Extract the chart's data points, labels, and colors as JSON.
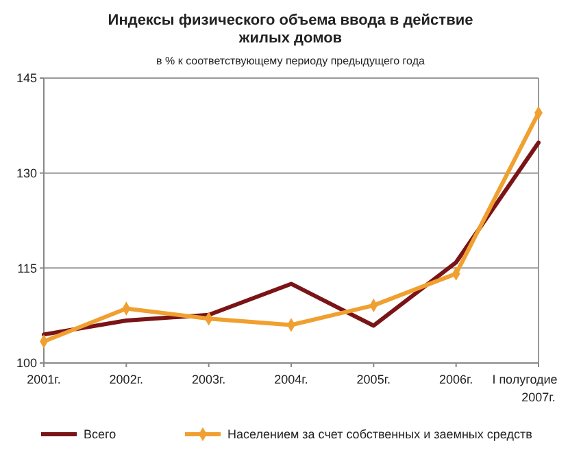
{
  "chart_data": {
    "type": "line",
    "title": "Индексы физического объема ввода в действие\nжилых домов",
    "subtitle": "в % к соответствующему периоду предыдущего года",
    "categories": [
      "2001г.",
      "2002г.",
      "2003г.",
      "2004г.",
      "2005г.",
      "2006г.",
      "I полугодие\n2007г."
    ],
    "series": [
      {
        "name": "Всего",
        "color": "#7b1416",
        "marker": "none",
        "values": [
          104.5,
          106.7,
          107.6,
          112.5,
          105.9,
          115.9,
          134.8
        ]
      },
      {
        "name": "Населением за счет собственных и заемных средств",
        "color": "#f0a030",
        "marker": "diamond",
        "values": [
          103.4,
          108.6,
          107.0,
          106.0,
          109.1,
          114.1,
          139.5
        ]
      }
    ],
    "ylim": [
      100,
      145
    ],
    "yticks": [
      100,
      115,
      130,
      145
    ],
    "grid": "y",
    "legend": "bottom"
  }
}
